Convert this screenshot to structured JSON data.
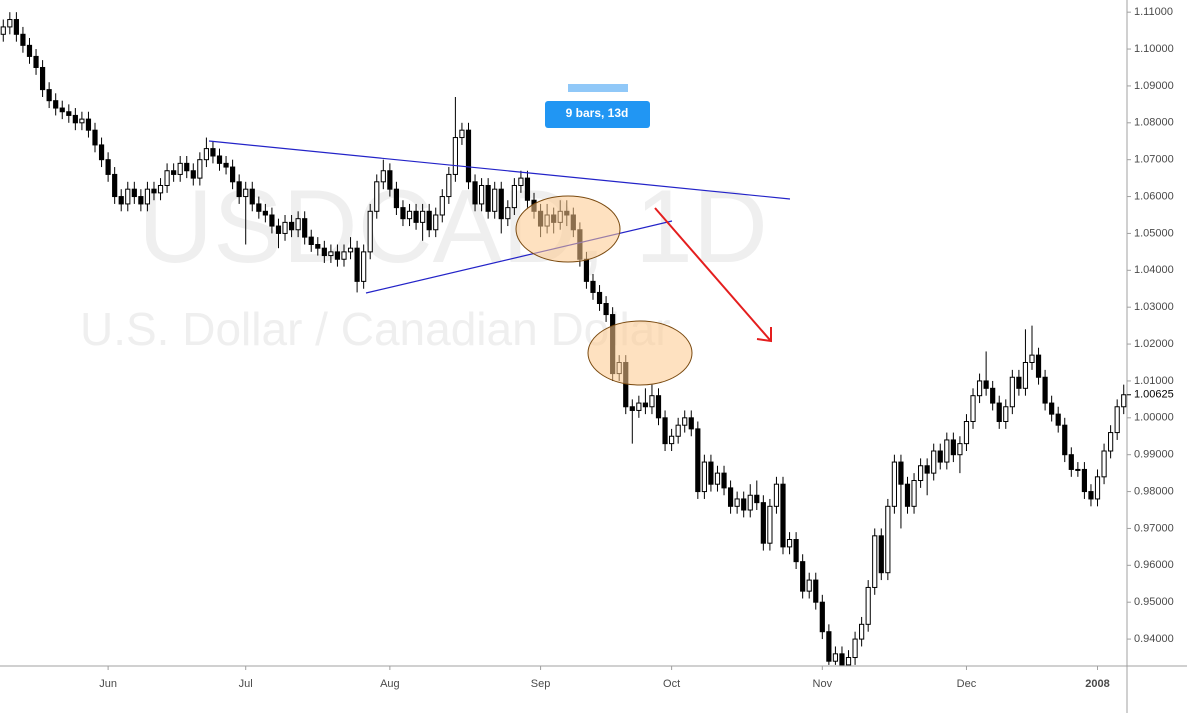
{
  "chart_data": {
    "type": "candlestick",
    "watermark": "USDCAD, 1D",
    "symbol_description": "U.S. Dollar / Canadian Dollar",
    "annotation": "9 bars, 13d",
    "last_price": 1.00625,
    "up_color": "#ffffff",
    "down_color": "#000000",
    "grid": false,
    "xlim": [
      0,
      172
    ],
    "xticks": [
      {
        "value": 16,
        "label": "Jun"
      },
      {
        "value": 37,
        "label": "Jul"
      },
      {
        "value": 59,
        "label": "Aug"
      },
      {
        "value": 82,
        "label": "Sep"
      },
      {
        "value": 102,
        "label": "Oct"
      },
      {
        "value": 125,
        "label": "Nov"
      },
      {
        "value": 147,
        "label": "Dec"
      },
      {
        "value": 167,
        "label": "2008"
      }
    ],
    "ylim": [
      0.9327,
      1.1133
    ],
    "yticks": [
      {
        "value": 0.94,
        "label": "0.94000"
      },
      {
        "value": 0.95,
        "label": "0.95000"
      },
      {
        "value": 0.96,
        "label": "0.96000"
      },
      {
        "value": 0.97,
        "label": "0.97000"
      },
      {
        "value": 0.98,
        "label": "0.98000"
      },
      {
        "value": 0.99,
        "label": "0.99000"
      },
      {
        "value": 1.0,
        "label": "1.00000"
      },
      {
        "value": 1.01,
        "label": "1.01000"
      },
      {
        "value": 1.02,
        "label": "1.02000"
      },
      {
        "value": 1.03,
        "label": "1.03000"
      },
      {
        "value": 1.04,
        "label": "1.04000"
      },
      {
        "value": 1.05,
        "label": "1.05000"
      },
      {
        "value": 1.06,
        "label": "1.06000"
      },
      {
        "value": 1.07,
        "label": "1.07000"
      },
      {
        "value": 1.08,
        "label": "1.08000"
      },
      {
        "value": 1.09,
        "label": "1.09000"
      },
      {
        "value": 1.1,
        "label": "1.10000"
      },
      {
        "value": 1.11,
        "label": "1.11000"
      }
    ],
    "open": [
      1.104,
      1.106,
      1.108,
      1.104,
      1.101,
      1.098,
      1.095,
      1.089,
      1.086,
      1.084,
      1.083,
      1.082,
      1.08,
      1.081,
      1.078,
      1.074,
      1.07,
      1.066,
      1.06,
      1.058,
      1.062,
      1.06,
      1.058,
      1.062,
      1.061,
      1.063,
      1.067,
      1.066,
      1.069,
      1.067,
      1.065,
      1.07,
      1.073,
      1.071,
      1.069,
      1.068,
      1.064,
      1.06,
      1.062,
      1.058,
      1.056,
      1.055,
      1.052,
      1.05,
      1.053,
      1.051,
      1.054,
      1.049,
      1.047,
      1.046,
      1.044,
      1.045,
      1.043,
      1.045,
      1.046,
      1.037,
      1.045,
      1.056,
      1.064,
      1.067,
      1.062,
      1.057,
      1.054,
      1.056,
      1.053,
      1.056,
      1.051,
      1.055,
      1.06,
      1.066,
      1.076,
      1.078,
      1.064,
      1.058,
      1.063,
      1.056,
      1.062,
      1.054,
      1.057,
      1.063,
      1.065,
      1.059,
      1.056,
      1.052,
      1.055,
      1.053,
      1.056,
      1.055,
      1.051,
      1.043,
      1.037,
      1.034,
      1.031,
      1.028,
      1.012,
      1.015,
      1.003,
      1.002,
      1.004,
      1.003,
      1.006,
      1.0,
      0.993,
      0.995,
      0.998,
      1.0,
      0.997,
      0.98,
      0.988,
      0.982,
      0.985,
      0.981,
      0.976,
      0.978,
      0.975,
      0.979,
      0.977,
      0.966,
      0.976,
      0.982,
      0.965,
      0.967,
      0.961,
      0.953,
      0.956,
      0.95,
      0.942,
      0.934,
      0.936,
      0.933,
      0.935,
      0.94,
      0.944,
      0.954,
      0.968,
      0.958,
      0.976,
      0.988,
      0.982,
      0.976,
      0.983,
      0.987,
      0.985,
      0.991,
      0.988,
      0.994,
      0.99,
      0.993,
      0.999,
      1.006,
      1.01,
      1.008,
      1.004,
      0.999,
      1.003,
      1.011,
      1.008,
      1.015,
      1.017,
      1.011,
      1.004,
      1.001,
      0.998,
      0.99,
      0.986,
      0.986,
      0.98,
      0.978,
      0.984,
      0.991,
      0.996,
      1.003
    ],
    "high": [
      1.108,
      1.11,
      1.11,
      1.106,
      1.103,
      1.1,
      1.097,
      1.091,
      1.088,
      1.086,
      1.085,
      1.084,
      1.083,
      1.083,
      1.08,
      1.076,
      1.072,
      1.068,
      1.062,
      1.064,
      1.064,
      1.062,
      1.064,
      1.064,
      1.065,
      1.069,
      1.069,
      1.071,
      1.071,
      1.069,
      1.072,
      1.076,
      1.075,
      1.073,
      1.071,
      1.07,
      1.066,
      1.064,
      1.064,
      1.06,
      1.058,
      1.057,
      1.054,
      1.055,
      1.055,
      1.056,
      1.056,
      1.051,
      1.049,
      1.048,
      1.047,
      1.047,
      1.047,
      1.049,
      1.048,
      1.047,
      1.058,
      1.066,
      1.07,
      1.069,
      1.064,
      1.059,
      1.058,
      1.058,
      1.058,
      1.058,
      1.057,
      1.062,
      1.068,
      1.087,
      1.08,
      1.08,
      1.066,
      1.065,
      1.065,
      1.064,
      1.064,
      1.059,
      1.065,
      1.067,
      1.067,
      1.061,
      1.058,
      1.058,
      1.057,
      1.059,
      1.059,
      1.057,
      1.053,
      1.045,
      1.039,
      1.036,
      1.033,
      1.03,
      1.017,
      1.017,
      1.005,
      1.006,
      1.008,
      1.009,
      1.008,
      1.002,
      0.997,
      1.0,
      1.002,
      1.002,
      0.999,
      0.99,
      0.99,
      0.987,
      0.987,
      0.983,
      0.98,
      0.98,
      0.982,
      0.983,
      0.979,
      0.978,
      0.984,
      0.984,
      0.969,
      0.969,
      0.963,
      0.958,
      0.958,
      0.952,
      0.944,
      0.938,
      0.938,
      0.937,
      0.942,
      0.946,
      0.956,
      0.97,
      0.97,
      0.978,
      0.99,
      0.99,
      0.984,
      0.985,
      0.989,
      0.989,
      0.993,
      0.993,
      0.996,
      0.996,
      0.995,
      1.001,
      1.008,
      1.012,
      1.018,
      1.01,
      1.006,
      1.005,
      1.013,
      1.013,
      1.024,
      1.025,
      1.019,
      1.013,
      1.006,
      1.003,
      1.0,
      0.992,
      0.988,
      0.988,
      0.982,
      0.986,
      0.993,
      0.998,
      1.005,
      1.009
    ],
    "low": [
      1.102,
      1.104,
      1.102,
      1.099,
      1.096,
      1.093,
      1.087,
      1.084,
      1.082,
      1.081,
      1.08,
      1.078,
      1.078,
      1.076,
      1.072,
      1.068,
      1.064,
      1.058,
      1.056,
      1.056,
      1.058,
      1.056,
      1.056,
      1.059,
      1.059,
      1.061,
      1.064,
      1.064,
      1.065,
      1.063,
      1.063,
      1.068,
      1.069,
      1.067,
      1.066,
      1.062,
      1.058,
      1.047,
      1.056,
      1.054,
      1.053,
      1.05,
      1.046,
      1.048,
      1.049,
      1.049,
      1.047,
      1.045,
      1.044,
      1.042,
      1.042,
      1.041,
      1.041,
      1.043,
      1.034,
      1.035,
      1.043,
      1.054,
      1.062,
      1.06,
      1.055,
      1.052,
      1.052,
      1.051,
      1.048,
      1.049,
      1.049,
      1.053,
      1.058,
      1.064,
      1.074,
      1.062,
      1.056,
      1.056,
      1.054,
      1.054,
      1.05,
      1.052,
      1.055,
      1.061,
      1.057,
      1.054,
      1.049,
      1.05,
      1.05,
      1.051,
      1.052,
      1.049,
      1.041,
      1.035,
      1.032,
      1.029,
      1.026,
      1.01,
      1.01,
      1.001,
      0.993,
      1.0,
      1.001,
      1.001,
      0.998,
      0.991,
      0.991,
      0.993,
      0.996,
      0.995,
      0.978,
      0.978,
      0.98,
      0.98,
      0.979,
      0.974,
      0.974,
      0.973,
      0.973,
      0.975,
      0.964,
      0.964,
      0.974,
      0.963,
      0.963,
      0.959,
      0.951,
      0.951,
      0.948,
      0.94,
      0.933,
      0.933,
      0.933,
      0.933,
      0.933,
      0.938,
      0.942,
      0.952,
      0.956,
      0.956,
      0.974,
      0.97,
      0.974,
      0.974,
      0.981,
      0.979,
      0.983,
      0.986,
      0.986,
      0.988,
      0.985,
      0.991,
      0.997,
      1.004,
      1.006,
      1.002,
      0.997,
      0.997,
      1.001,
      1.006,
      1.006,
      1.013,
      1.009,
      1.002,
      0.999,
      0.996,
      0.988,
      0.984,
      0.984,
      0.978,
      0.976,
      0.976,
      0.982,
      0.989,
      0.994,
      1.001
    ],
    "close": [
      1.106,
      1.108,
      1.104,
      1.101,
      1.098,
      1.095,
      1.089,
      1.086,
      1.084,
      1.083,
      1.082,
      1.08,
      1.081,
      1.078,
      1.074,
      1.07,
      1.066,
      1.06,
      1.058,
      1.062,
      1.06,
      1.058,
      1.062,
      1.061,
      1.063,
      1.067,
      1.066,
      1.069,
      1.067,
      1.065,
      1.07,
      1.073,
      1.071,
      1.069,
      1.068,
      1.064,
      1.06,
      1.062,
      1.058,
      1.056,
      1.055,
      1.052,
      1.05,
      1.053,
      1.051,
      1.054,
      1.049,
      1.047,
      1.046,
      1.044,
      1.045,
      1.043,
      1.045,
      1.046,
      1.037,
      1.045,
      1.056,
      1.064,
      1.067,
      1.062,
      1.057,
      1.054,
      1.056,
      1.053,
      1.056,
      1.051,
      1.055,
      1.06,
      1.066,
      1.076,
      1.078,
      1.064,
      1.058,
      1.063,
      1.056,
      1.062,
      1.054,
      1.057,
      1.063,
      1.065,
      1.059,
      1.056,
      1.052,
      1.055,
      1.053,
      1.056,
      1.055,
      1.051,
      1.043,
      1.037,
      1.034,
      1.031,
      1.028,
      1.012,
      1.015,
      1.003,
      1.002,
      1.004,
      1.003,
      1.006,
      1.0,
      0.993,
      0.995,
      0.998,
      1.0,
      0.997,
      0.98,
      0.988,
      0.982,
      0.985,
      0.981,
      0.976,
      0.978,
      0.975,
      0.979,
      0.977,
      0.966,
      0.976,
      0.982,
      0.965,
      0.967,
      0.961,
      0.953,
      0.956,
      0.95,
      0.942,
      0.934,
      0.936,
      0.933,
      0.935,
      0.94,
      0.944,
      0.954,
      0.968,
      0.958,
      0.976,
      0.988,
      0.982,
      0.976,
      0.983,
      0.987,
      0.985,
      0.991,
      0.988,
      0.994,
      0.99,
      0.993,
      0.999,
      1.006,
      1.01,
      1.008,
      1.004,
      0.999,
      1.003,
      1.011,
      1.008,
      1.015,
      1.017,
      1.011,
      1.004,
      1.001,
      0.998,
      0.99,
      0.986,
      0.986,
      0.98,
      0.978,
      0.984,
      0.991,
      0.996,
      1.003,
      1.00625
    ]
  }
}
